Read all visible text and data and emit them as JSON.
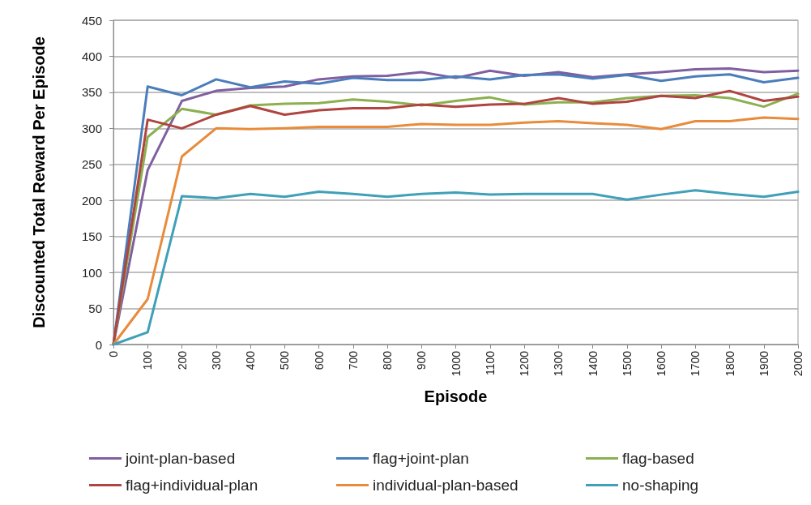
{
  "chart_data": {
    "type": "line",
    "xlabel": "Episode",
    "ylabel": "Discounted Total Reward Per Episode",
    "categories": [
      "0",
      "100",
      "200",
      "300",
      "400",
      "500",
      "600",
      "700",
      "800",
      "900",
      "1000",
      "1100",
      "1200",
      "1300",
      "1400",
      "1500",
      "1600",
      "1700",
      "1800",
      "1900",
      "2000"
    ],
    "series": [
      {
        "name": "joint-plan-based",
        "color": "#7f5fa0",
        "values": [
          0,
          242,
          338,
          352,
          356,
          358,
          368,
          372,
          373,
          378,
          370,
          380,
          373,
          378,
          371,
          375,
          378,
          382,
          383,
          378,
          380
        ]
      },
      {
        "name": "flag+joint-plan",
        "color": "#4a7ebb",
        "values": [
          0,
          358,
          346,
          368,
          357,
          365,
          362,
          370,
          367,
          367,
          372,
          368,
          374,
          375,
          369,
          374,
          366,
          372,
          375,
          364,
          370
        ]
      },
      {
        "name": "flag-based",
        "color": "#8cb050",
        "values": [
          0,
          288,
          327,
          319,
          332,
          334,
          335,
          340,
          337,
          332,
          338,
          343,
          333,
          336,
          336,
          342,
          345,
          346,
          342,
          330,
          348
        ]
      },
      {
        "name": "flag+individual-plan",
        "color": "#b04440",
        "values": [
          0,
          312,
          300,
          319,
          331,
          319,
          325,
          328,
          328,
          333,
          330,
          333,
          334,
          342,
          334,
          337,
          345,
          342,
          352,
          338,
          344
        ]
      },
      {
        "name": "individual-plan-based",
        "color": "#e88b3a",
        "values": [
          0,
          63,
          261,
          300,
          299,
          300,
          302,
          302,
          302,
          306,
          305,
          305,
          308,
          310,
          307,
          305,
          299,
          310,
          310,
          315,
          313
        ]
      },
      {
        "name": "no-shaping",
        "color": "#40a0b8",
        "values": [
          0,
          17,
          206,
          203,
          209,
          205,
          212,
          209,
          205,
          209,
          211,
          208,
          209,
          209,
          209,
          201,
          208,
          214,
          209,
          205,
          212
        ]
      }
    ],
    "ylim": [
      0,
      450
    ],
    "yticks": [
      0,
      50,
      100,
      150,
      200,
      250,
      300,
      350,
      400,
      450
    ],
    "grid": "y",
    "legend": "bottom",
    "marker": "none",
    "line_style": "solid"
  }
}
